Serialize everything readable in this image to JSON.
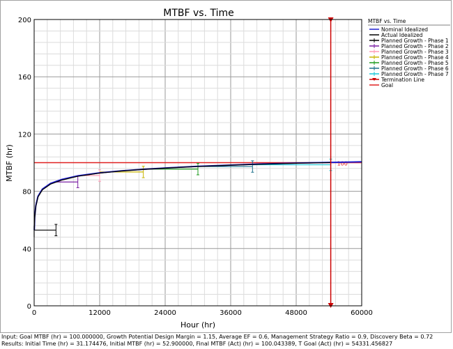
{
  "footer": {
    "input_line": "Input: Goal MTBF (hr) = 100.000000, Growth Potential Design Margin = 1.15, Average EF = 0.6, Management Strategy Ratio = 0.9, Discovery Beta = 0.72",
    "results_line": "Results: Initial Time (hr) = 31.174476, Initial MTBF (hr) = 52.900000, Final MTBF (Act) (hr) = 100.043389, T Goal (Act) (hr) = 54331.456827"
  },
  "chart_data": {
    "type": "line",
    "title": "MTBF vs. Time",
    "xlabel": "Hour (hr)",
    "ylabel": "MTBF (hr)",
    "xlim": [
      0,
      60000
    ],
    "ylim": [
      0,
      200
    ],
    "x_ticks": [
      "0",
      "12000",
      "24000",
      "36000",
      "48000",
      "60000"
    ],
    "y_ticks": [
      "0",
      "40",
      "80",
      "120",
      "160",
      "200"
    ],
    "grid": true,
    "legend_title": "MTBF vs. Time",
    "legend_position": "right",
    "goal_value": 100,
    "goal_label": "100",
    "termination_time": 54331,
    "series": [
      {
        "name": "Nominal Idealized",
        "color": "#1f1fd0",
        "x": [
          31,
          100,
          300,
          700,
          1500,
          3000,
          5000,
          8000,
          12000,
          16000,
          20000,
          25000,
          30000,
          36000,
          42000,
          48000,
          54331,
          60000
        ],
        "y": [
          52.9,
          62,
          70,
          76.5,
          81.5,
          85.5,
          88.2,
          90.8,
          92.9,
          94.3,
          95.4,
          96.5,
          97.4,
          98.3,
          99.1,
          99.7,
          100.2,
          100.6
        ]
      },
      {
        "name": "Actual Idealized",
        "color": "#000000",
        "x": [
          31,
          100,
          300,
          700,
          1500,
          3000,
          5000,
          8000,
          12000,
          16000,
          20000,
          25000,
          30000,
          36000,
          42000,
          48000,
          54331
        ],
        "y": [
          52.9,
          61.5,
          69.5,
          76,
          81,
          85,
          87.8,
          90.5,
          92.7,
          94.2,
          95.3,
          96.4,
          97.3,
          98.2,
          99,
          99.6,
          100.04
        ]
      },
      {
        "name": "Planned Growth - Phase 1",
        "color": "#000000",
        "x": [
          0,
          4000
        ],
        "y": [
          52.9,
          52.9
        ],
        "err": 4
      },
      {
        "name": "Planned Growth - Phase 2",
        "color": "#7a1fa2",
        "x": [
          4000,
          8000
        ],
        "y": [
          86.5,
          86.5
        ],
        "err": 4
      },
      {
        "name": "Planned Growth - Phase 3",
        "color": "#ff9ab4",
        "x": [
          8000,
          12000
        ],
        "y": [
          91,
          91
        ],
        "err": 4
      },
      {
        "name": "Planned Growth - Phase 4",
        "color": "#c8b400",
        "x": [
          12000,
          20000
        ],
        "y": [
          93.5,
          93.5
        ],
        "err": 4
      },
      {
        "name": "Planned Growth - Phase 5",
        "color": "#1e9b1e",
        "x": [
          20000,
          30000
        ],
        "y": [
          95.5,
          95.5
        ],
        "err": 4
      },
      {
        "name": "Planned Growth - Phase 6",
        "color": "#1a6f8a",
        "x": [
          30000,
          40000
        ],
        "y": [
          97.3,
          97.3
        ],
        "err": 4
      },
      {
        "name": "Planned Growth - Phase 7",
        "color": "#19c8d8",
        "x": [
          40000,
          54331
        ],
        "y": [
          98.5,
          98.5
        ],
        "err": 4
      },
      {
        "name": "Termination Line",
        "color": "#cc0000",
        "x": [
          54331,
          54331
        ],
        "y": [
          0,
          200
        ]
      },
      {
        "name": "Goal",
        "color": "#e02020",
        "x": [
          0,
          60000
        ],
        "y": [
          100,
          100
        ]
      }
    ]
  }
}
